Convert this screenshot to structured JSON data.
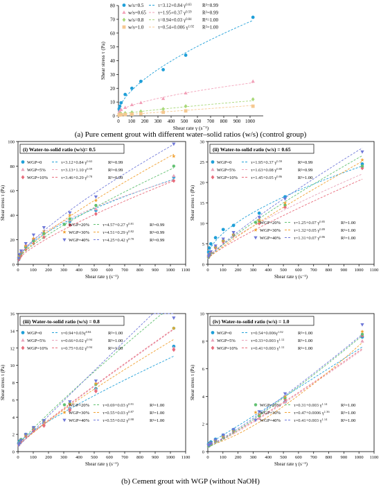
{
  "captions": {
    "a": "(a) Pure cement grout with different water–solid ratios (w/s) (control group)",
    "b": "(b) Cement grout with WGP (without NaOH)"
  },
  "chart_data": [
    {
      "id": "top",
      "type": "scatter",
      "title": "",
      "xlabel": "Shear rate γ (s⁻¹)",
      "ylabel": "Shear stress τ (Pa)",
      "xlim": [
        0,
        1100
      ],
      "ylim": [
        0,
        80
      ],
      "xticks": [
        0,
        100,
        200,
        300,
        400,
        500,
        600,
        700,
        800,
        900,
        1000
      ],
      "yticks": [
        0,
        10,
        20,
        30,
        40,
        50,
        60,
        70,
        80
      ],
      "legend_position": "top-left",
      "series": [
        {
          "name": "w/s=0.5",
          "fit": "τ=3.12+0.84 γ^0.63",
          "r2": "R²=0.99",
          "color": "#1f9fd8",
          "marker": "circle",
          "tau0": 3.12,
          "k": 0.84,
          "n": 0.63,
          "x": [
            5,
            10,
            20,
            51,
            102,
            170,
            340,
            511,
            1022
          ],
          "y": [
            5.0,
            7.0,
            9.5,
            15.5,
            20.0,
            25.0,
            33.5,
            44.0,
            71.5
          ]
        },
        {
          "name": "w/s=0.65",
          "fit": "τ=1.95+0.37 γ^0.59",
          "r2": "R²=0.99",
          "color": "#f2a0b8",
          "marker": "triangle",
          "tau0": 1.95,
          "k": 0.37,
          "n": 0.59,
          "x": [
            5,
            10,
            20,
            51,
            102,
            170,
            340,
            511,
            1022
          ],
          "y": [
            2.5,
            3.5,
            4.5,
            6.0,
            8.0,
            9.5,
            12.5,
            16.5,
            25.0
          ]
        },
        {
          "name": "w/s=0.8",
          "fit": "τ=0.94+0.03 γ^0.84",
          "r2": "R²=1.00",
          "color": "#a8d878",
          "marker": "diamond",
          "tau0": 0.94,
          "k": 0.03,
          "n": 0.84,
          "x": [
            5,
            10,
            20,
            51,
            102,
            170,
            340,
            511,
            1022
          ],
          "y": [
            1.0,
            1.2,
            1.5,
            2.0,
            2.5,
            3.2,
            5.0,
            7.0,
            12.0
          ]
        },
        {
          "name": "w/s=1.0",
          "fit": "τ=0.54+0.006 γ^1.02",
          "r2": "R²=1.00",
          "color": "#f5c890",
          "marker": "square",
          "tau0": 0.54,
          "k": 0.006,
          "n": 1.02,
          "x": [
            5,
            10,
            20,
            51,
            102,
            170,
            340,
            511,
            1022
          ],
          "y": [
            0.6,
            0.7,
            0.8,
            1.0,
            1.2,
            1.6,
            2.6,
            3.6,
            7.0
          ]
        }
      ]
    },
    {
      "id": "p1",
      "type": "scatter",
      "title": "(i)   Water-to-solid ratio (w/s)= 0.5",
      "xlabel": "Shear rate γ (s⁻¹)",
      "ylabel": "Shear stress τ (Pa)",
      "xlim": [
        0,
        1100
      ],
      "ylim": [
        0,
        100
      ],
      "xticks": [
        0,
        100,
        200,
        300,
        400,
        500,
        600,
        700,
        800,
        900,
        1000,
        1100
      ],
      "yticks": [
        0,
        20,
        40,
        60,
        80,
        100
      ],
      "series": [
        {
          "name": "WGP=0",
          "fit": "τ=3.12+0.84 γ^0.63",
          "r2": "R²=0.99",
          "color": "#1f9fd8",
          "marker": "circle",
          "tau0": 3.12,
          "k": 0.84,
          "n": 0.63,
          "x": [
            5,
            10,
            20,
            51,
            102,
            170,
            340,
            511,
            1022
          ],
          "y": [
            4,
            6,
            9,
            14,
            20,
            25,
            35,
            44,
            71
          ]
        },
        {
          "name": "WGP=5%",
          "fit": "τ=3.13+1.10 γ^0.59",
          "r2": "R²=0.99",
          "color": "#e8a2b8",
          "marker": "triangle",
          "tau0": 3.13,
          "k": 1.1,
          "n": 0.59,
          "x": [
            5,
            10,
            20,
            51,
            102,
            170,
            340,
            511,
            1022
          ],
          "y": [
            5,
            7,
            10,
            16,
            21,
            26,
            36,
            45,
            72
          ]
        },
        {
          "name": "WGP=10%",
          "fit": "τ=3.46+0.29 γ^0.78",
          "r2": "R²=0.99",
          "color": "#e86a7a",
          "marker": "diamond",
          "tau0": 3.46,
          "k": 0.29,
          "n": 0.78,
          "x": [
            5,
            10,
            20,
            51,
            102,
            170,
            340,
            511,
            1022
          ],
          "y": [
            4,
            5,
            7,
            12,
            17,
            22,
            32,
            41,
            68
          ]
        },
        {
          "name": "WGP=20%",
          "fit": "τ=4.57+0.27 γ^0.81",
          "r2": "R²=0.99",
          "color": "#60c070",
          "marker": "hexagon",
          "tau0": 4.57,
          "k": 0.27,
          "n": 0.81,
          "x": [
            5,
            10,
            20,
            51,
            102,
            170,
            340,
            511,
            1022
          ],
          "y": [
            5,
            7,
            9,
            14,
            19,
            25,
            37,
            48,
            80
          ]
        },
        {
          "name": "WGP=30%",
          "fit": "τ=4.51+0.29 γ^0.82",
          "r2": "R²=0.99",
          "color": "#f0a030",
          "marker": "star",
          "tau0": 4.51,
          "k": 0.29,
          "n": 0.82,
          "x": [
            5,
            10,
            20,
            51,
            102,
            170,
            340,
            511,
            1022
          ],
          "y": [
            5,
            7,
            10,
            15,
            21,
            27,
            40,
            52,
            88
          ]
        },
        {
          "name": "WGP=40%",
          "fit": "τ=4.25+0.42 γ^0.78",
          "r2": "R²=0.99",
          "color": "#6f78d8",
          "marker": "tri-down",
          "tau0": 4.25,
          "k": 0.42,
          "n": 0.78,
          "x": [
            5,
            10,
            20,
            51,
            102,
            170,
            340,
            511,
            1022
          ],
          "y": [
            5,
            8,
            11,
            17,
            24,
            30,
            42,
            55,
            98
          ]
        }
      ]
    },
    {
      "id": "p2",
      "type": "scatter",
      "title": "(ii)  Water-to-solid ratio (w/s) = 0.65",
      "xlabel": "Shear rate γ (s⁻¹)",
      "ylabel": "Shear stress τ (Pa)",
      "xlim": [
        0,
        1100
      ],
      "ylim": [
        0,
        30
      ],
      "xticks": [
        0,
        100,
        200,
        300,
        400,
        500,
        600,
        700,
        800,
        900,
        1000,
        1100
      ],
      "yticks": [
        0,
        5,
        10,
        15,
        20,
        25,
        30
      ],
      "series": [
        {
          "name": "WGP=0",
          "fit": "τ=1.95+0.37 γ^0.59",
          "r2": "R²=0.99",
          "color": "#1f9fd8",
          "marker": "circle",
          "tau0": 1.95,
          "k": 0.37,
          "n": 0.59,
          "x": [
            5,
            10,
            20,
            51,
            102,
            170,
            340,
            511,
            1022
          ],
          "y": [
            3,
            4,
            5,
            6.5,
            8.5,
            9.5,
            12.5,
            16.5,
            24.5
          ]
        },
        {
          "name": "WGP=5%",
          "fit": "τ=1.63+0.08 γ^0.80",
          "r2": "R²=0.99",
          "color": "#e8a2b8",
          "marker": "triangle",
          "tau0": 1.63,
          "k": 0.08,
          "n": 0.8,
          "x": [
            5,
            10,
            20,
            51,
            102,
            170,
            340,
            511,
            1022
          ],
          "y": [
            2,
            2.5,
            3,
            4.5,
            6,
            7.5,
            11,
            14,
            24
          ]
        },
        {
          "name": "WGP=10%",
          "fit": "τ=1.45+0.05 γ^0.86",
          "r2": "R²=1.00",
          "color": "#e86a7a",
          "marker": "diamond",
          "tau0": 1.45,
          "k": 0.05,
          "n": 0.86,
          "x": [
            5,
            10,
            20,
            51,
            102,
            170,
            340,
            511,
            1022
          ],
          "y": [
            1.8,
            2.2,
            2.8,
            4,
            5.5,
            7,
            10,
            14,
            23.5
          ]
        },
        {
          "name": "WGP=20%",
          "fit": "τ=1.25+0.07 γ^0.85",
          "r2": "R²=1.00",
          "color": "#60c070",
          "marker": "hexagon",
          "tau0": 1.25,
          "k": 0.07,
          "n": 0.85,
          "x": [
            5,
            10,
            20,
            51,
            102,
            170,
            340,
            511,
            1022
          ],
          "y": [
            1.7,
            2.2,
            2.8,
            4.2,
            5.8,
            7.2,
            10.5,
            14.5,
            24
          ]
        },
        {
          "name": "WGP=30%",
          "fit": "τ=1.32+0.05 γ^0.89",
          "r2": "R²=1.00",
          "color": "#f0a030",
          "marker": "star",
          "tau0": 1.32,
          "k": 0.05,
          "n": 0.89,
          "x": [
            5,
            10,
            20,
            51,
            102,
            170,
            340,
            511,
            1022
          ],
          "y": [
            1.8,
            2.3,
            2.9,
            4.2,
            5.8,
            7.3,
            10.8,
            15,
            25.5
          ]
        },
        {
          "name": "WGP=40%",
          "fit": "τ=1.31+0.07 γ^0.86",
          "r2": "R²=1.00",
          "color": "#6f78d8",
          "marker": "tri-down",
          "tau0": 1.31,
          "k": 0.07,
          "n": 0.86,
          "x": [
            5,
            10,
            20,
            51,
            102,
            170,
            340,
            511,
            1022
          ],
          "y": [
            1.9,
            2.4,
            3.1,
            4.5,
            6.2,
            7.8,
            11.5,
            16,
            27.5
          ]
        }
      ]
    },
    {
      "id": "p3",
      "type": "scatter",
      "title": "(iii)  Water-to-solid ratio (w/s) = 0.8",
      "xlabel": "Shear rate γ (s⁻¹)",
      "ylabel": "Shear stress τ (Pa)",
      "xlim": [
        0,
        1100
      ],
      "ylim": [
        0,
        16
      ],
      "xticks": [
        0,
        100,
        200,
        300,
        400,
        500,
        600,
        700,
        800,
        900,
        1000,
        1100
      ],
      "yticks": [
        0,
        2,
        4,
        6,
        8,
        10,
        12,
        14,
        16
      ],
      "series": [
        {
          "name": "WGP=0",
          "fit": "τ=0.94+0.03γ^0.84",
          "r2": "R²=1.00",
          "color": "#1f9fd8",
          "marker": "circle",
          "tau0": 0.94,
          "k": 0.03,
          "n": 0.84,
          "x": [
            5,
            10,
            20,
            51,
            102,
            170,
            340,
            511,
            1022
          ],
          "y": [
            1.0,
            1.2,
            1.4,
            2.0,
            2.6,
            3.3,
            5.0,
            7.3,
            12.2
          ]
        },
        {
          "name": "WGP=5%",
          "fit": "τ=0.66+0.02 γ^0.94",
          "r2": "R²=1.00",
          "color": "#e8a2b8",
          "marker": "triangle",
          "tau0": 0.66,
          "k": 0.02,
          "n": 0.94,
          "x": [
            5,
            10,
            20,
            51,
            102,
            170,
            340,
            511,
            1022
          ],
          "y": [
            0.8,
            1.0,
            1.2,
            1.8,
            2.5,
            3.2,
            5.0,
            7.2,
            12.0
          ]
        },
        {
          "name": "WGP=10%",
          "fit": "τ=0.75+0.02 γ^0.94",
          "r2": "R²=1.00",
          "color": "#e86a7a",
          "marker": "diamond",
          "tau0": 0.75,
          "k": 0.02,
          "n": 0.94,
          "x": [
            5,
            10,
            20,
            51,
            102,
            170,
            340,
            511,
            1022
          ],
          "y": [
            0.9,
            1.0,
            1.2,
            1.8,
            2.4,
            3.0,
            4.8,
            7.0,
            11.8
          ]
        },
        {
          "name": "WGP=20%",
          "fit": "τ=0.69+0.03 γ^0.91",
          "r2": "R²=1.00",
          "color": "#60c070",
          "marker": "hexagon",
          "tau0": 0.69,
          "k": 0.03,
          "n": 0.91,
          "x": [
            5,
            10,
            20,
            51,
            102,
            170,
            340,
            511,
            1022
          ],
          "y": [
            0.9,
            1.1,
            1.4,
            2.0,
            2.8,
            3.6,
            5.6,
            7.8,
            14.3
          ]
        },
        {
          "name": "WGP=30%",
          "fit": "τ=0.55+0.03 γ^0.87",
          "r2": "R²=1.00",
          "color": "#f0a030",
          "marker": "star",
          "tau0": 0.55,
          "k": 0.03,
          "n": 0.87,
          "x": [
            5,
            10,
            20,
            51,
            102,
            170,
            340,
            511,
            1022
          ],
          "y": [
            0.8,
            1.0,
            1.3,
            1.9,
            2.7,
            3.5,
            5.5,
            7.9,
            14.3
          ]
        },
        {
          "name": "WGP=40%",
          "fit": "τ=0.55+0.02 γ^0.98",
          "r2": "R²=1.00",
          "color": "#6f78d8",
          "marker": "tri-down",
          "tau0": 0.55,
          "k": 0.02,
          "n": 0.98,
          "x": [
            5,
            10,
            20,
            51,
            102,
            170,
            340,
            511,
            1022
          ],
          "y": [
            0.8,
            1.0,
            1.3,
            2.0,
            2.8,
            3.6,
            5.8,
            8.2,
            15.5
          ]
        }
      ]
    },
    {
      "id": "p4",
      "type": "scatter",
      "title": "(iv)  Water-to-solid ratio (w/s) = 1.0",
      "xlabel": "Shear rate γ (s⁻¹)",
      "ylabel": "Shear stress τ (Pa)",
      "xlim": [
        0,
        1100
      ],
      "ylim": [
        0,
        10
      ],
      "xticks": [
        0,
        100,
        200,
        300,
        400,
        500,
        600,
        700,
        800,
        900,
        1000,
        1100
      ],
      "yticks": [
        0,
        2,
        4,
        6,
        8,
        10
      ],
      "series": [
        {
          "name": "WGP=0",
          "fit": "τ=0.54+0.006γ^1.02",
          "r2": "R²=1.00",
          "color": "#1f9fd8",
          "marker": "circle",
          "tau0": 0.54,
          "k": 0.006,
          "n": 1.02,
          "x": [
            5,
            10,
            20,
            51,
            102,
            170,
            340,
            511,
            1022
          ],
          "y": [
            0.55,
            0.6,
            0.7,
            0.9,
            1.2,
            1.6,
            2.6,
            3.6,
            8.3
          ]
        },
        {
          "name": "WGP=5%",
          "fit": "τ=0.33+0.003 γ^1.12",
          "r2": "R²=1.00",
          "color": "#e8a2b8",
          "marker": "triangle",
          "tau0": 0.33,
          "k": 0.003,
          "n": 1.12,
          "x": [
            5,
            10,
            20,
            51,
            102,
            170,
            340,
            511,
            1022
          ],
          "y": [
            0.4,
            0.45,
            0.55,
            0.75,
            1.0,
            1.4,
            2.4,
            3.6,
            8.0
          ]
        },
        {
          "name": "WGP=10%",
          "fit": "τ=0.41+0.003 γ^1.12",
          "r2": "R²=1.00",
          "color": "#e86a7a",
          "marker": "diamond",
          "tau0": 0.41,
          "k": 0.003,
          "n": 1.12,
          "x": [
            5,
            10,
            20,
            51,
            102,
            170,
            340,
            511,
            1022
          ],
          "y": [
            0.45,
            0.5,
            0.6,
            0.8,
            1.1,
            1.5,
            2.6,
            3.8,
            8.4
          ]
        },
        {
          "name": "WGP=20%",
          "fit": "τ=0.31+0.003 γ^1.14",
          "r2": "R²=1.00",
          "color": "#60c070",
          "marker": "hexagon",
          "tau0": 0.31,
          "k": 0.003,
          "n": 1.14,
          "x": [
            5,
            10,
            20,
            51,
            102,
            170,
            340,
            511,
            1022
          ],
          "y": [
            0.4,
            0.45,
            0.55,
            0.75,
            1.05,
            1.5,
            2.6,
            3.9,
            8.5
          ]
        },
        {
          "name": "WGP=30%",
          "fit": "τ=0.47+0.0006 γ^1.36",
          "r2": "R²=1.00",
          "color": "#f0a030",
          "marker": "star",
          "tau0": 0.47,
          "k": 0.0006,
          "n": 1.36,
          "x": [
            5,
            10,
            20,
            51,
            102,
            170,
            340,
            511,
            1022
          ],
          "y": [
            0.5,
            0.55,
            0.6,
            0.8,
            1.1,
            1.5,
            2.7,
            4.0,
            8.7
          ]
        },
        {
          "name": "WGP=40%",
          "fit": "τ=0.41+0.003 γ^1.14",
          "r2": "R²=1.00",
          "color": "#6f78d8",
          "marker": "tri-down",
          "tau0": 0.41,
          "k": 0.003,
          "n": 1.14,
          "x": [
            5,
            10,
            20,
            51,
            102,
            170,
            340,
            511,
            1022
          ],
          "y": [
            0.45,
            0.5,
            0.6,
            0.85,
            1.2,
            1.6,
            2.9,
            4.2,
            9.2
          ]
        }
      ]
    }
  ]
}
